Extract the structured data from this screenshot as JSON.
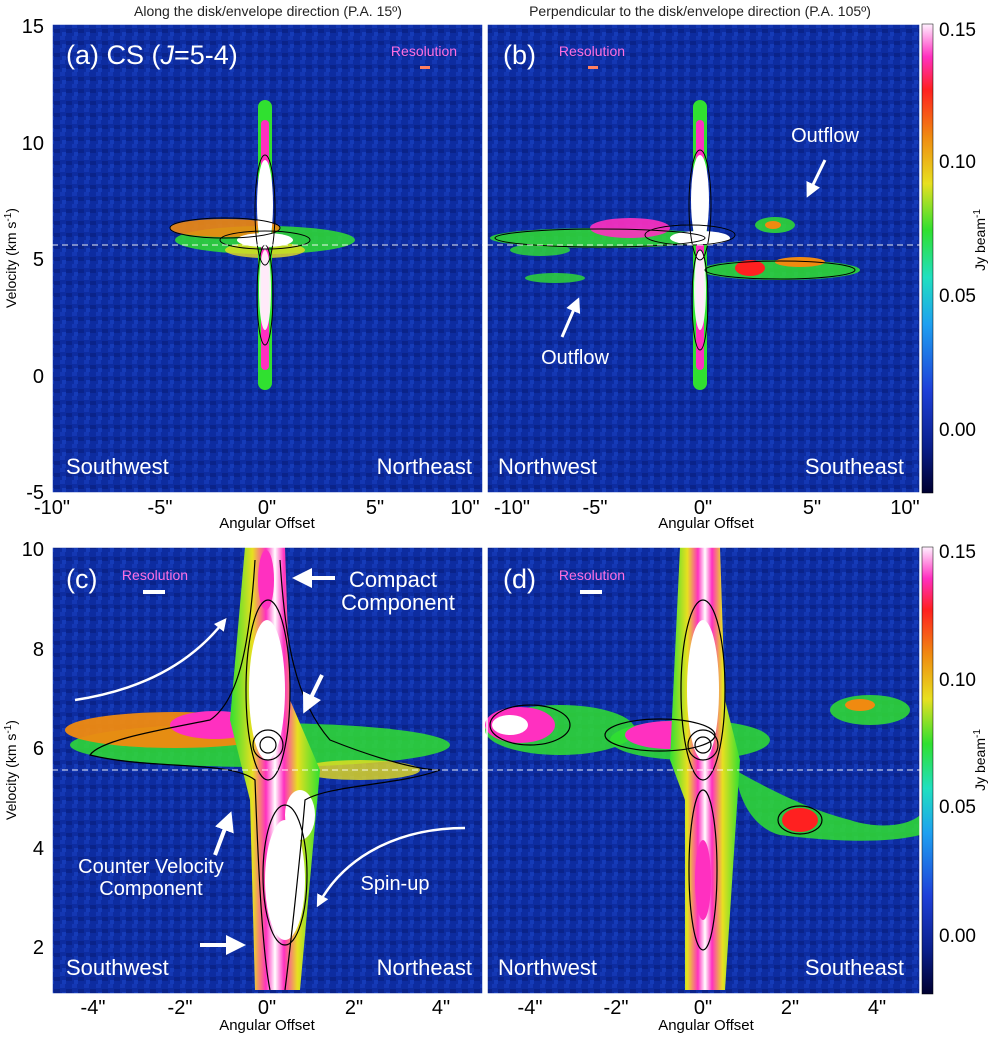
{
  "figure": {
    "top_titles": {
      "left": "Along the disk/envelope direction (P.A. 15º)",
      "right": "Perpendicular to the disk/envelope direction (P.A. 105º)"
    },
    "colorbar": {
      "label": "Jy beam",
      "label_sup": "-1",
      "ticks": [
        "0.15",
        "0.10",
        "0.05",
        "0.00"
      ],
      "range": [
        -0.02,
        0.155
      ]
    },
    "y_axis_label": "Velocity (km s",
    "y_axis_sup": "-1",
    "y_axis_close": ")",
    "x_axis_label": "Angular Offset",
    "resolution_label": "Resolution",
    "systemic_velocity": 5.5,
    "panels": {
      "a": {
        "label_prefix": "(a) CS (",
        "label_italic": "J",
        "label_suffix": "=5-4)",
        "left_dir": "Southwest",
        "right_dir": "Northeast",
        "x_ticks": [
          "-10\"",
          "-5\"",
          "0\"",
          "5\"",
          "10\""
        ],
        "y_ticks": [
          "15",
          "10",
          "5",
          "0",
          "-5"
        ]
      },
      "b": {
        "label": "(b)",
        "left_dir": "Northwest",
        "right_dir": "Southeast",
        "x_ticks": [
          "-10\"",
          "-5\"",
          "0\"",
          "5\"",
          "10\""
        ],
        "annotations": [
          "Outflow",
          "Outflow"
        ]
      },
      "c": {
        "label": "(c)",
        "left_dir": "Southwest",
        "right_dir": "Northeast",
        "x_ticks": [
          "-4\"",
          "-2\"",
          "0\"",
          "2\"",
          "4\""
        ],
        "y_ticks": [
          "10",
          "8",
          "6",
          "4",
          "2"
        ],
        "annotations": {
          "compact_1": "Compact",
          "compact_2": "Component",
          "counter_1": "Counter Velocity",
          "counter_2": "Component",
          "spin": "Spin-up"
        }
      },
      "d": {
        "label": "(d)",
        "left_dir": "Northwest",
        "right_dir": "Southeast",
        "x_ticks": [
          "-4\"",
          "-2\"",
          "0\"",
          "2\"",
          "4\""
        ]
      }
    }
  },
  "chart_data": [
    {
      "type": "heatmap",
      "title": "(a) CS (J=5-4)",
      "xlabel": "Angular Offset",
      "ylabel": "Velocity (km s-1)",
      "xlim": [
        -10,
        10
      ],
      "ylim": [
        -5,
        15
      ],
      "x_ticks": [
        -10,
        -5,
        0,
        5,
        10
      ],
      "y_ticks": [
        -5,
        0,
        5,
        10,
        15
      ],
      "cut": "Along the disk/envelope direction (P.A. 15º)",
      "colorbar_label": "Jy beam-1",
      "colorbar_range": [
        -0.02,
        0.155
      ],
      "features": [
        {
          "x": 0.0,
          "vmin": 0.0,
          "vmax": 11.5,
          "peak": 0.15
        },
        {
          "xmin": -4.5,
          "xmax": 3.0,
          "v": 5.9,
          "peak": 0.12
        }
      ]
    },
    {
      "type": "heatmap",
      "title": "(b)",
      "xlabel": "Angular Offset",
      "xlim": [
        -10,
        10
      ],
      "ylim": [
        -5,
        15
      ],
      "x_ticks": [
        -10,
        -5,
        0,
        5,
        10
      ],
      "cut": "Perpendicular to the disk/envelope direction (P.A. 105º)",
      "features": [
        {
          "x": 0.0,
          "vmin": -0.3,
          "vmax": 11.5,
          "peak": 0.15
        },
        {
          "xmin": -9.0,
          "xmax": 3.0,
          "v": 6.0,
          "peak": 0.12
        },
        {
          "xmin": 1.0,
          "xmax": 7.5,
          "v": 4.7,
          "peak": 0.1
        }
      ]
    },
    {
      "type": "heatmap",
      "title": "(c)",
      "xlabel": "Angular Offset",
      "ylabel": "Velocity (km s-1)",
      "xlim": [
        -5,
        5
      ],
      "ylim": [
        1,
        10
      ],
      "x_ticks": [
        -4,
        -2,
        0,
        2,
        4
      ],
      "y_ticks": [
        2,
        4,
        6,
        8,
        10
      ],
      "features": [
        {
          "x": 0.0,
          "vmin": 1.0,
          "vmax": 10.0,
          "peak": 0.15
        },
        {
          "xmin": -4.5,
          "xmax": 4.3,
          "v": 6.0,
          "peak": 0.12
        }
      ]
    },
    {
      "type": "heatmap",
      "title": "(d)",
      "xlabel": "Angular Offset",
      "xlim": [
        -5,
        5
      ],
      "ylim": [
        1,
        10
      ],
      "x_ticks": [
        -4,
        -2,
        0,
        2,
        4
      ],
      "features": [
        {
          "x": 0.0,
          "vmin": 1.0,
          "vmax": 10.0,
          "peak": 0.15
        },
        {
          "xmin": -5.0,
          "xmax": 1.5,
          "v": 6.0,
          "peak": 0.14
        },
        {
          "xmin": 1.5,
          "xmax": 5.0,
          "v": 4.6,
          "peak": 0.1
        }
      ]
    }
  ]
}
